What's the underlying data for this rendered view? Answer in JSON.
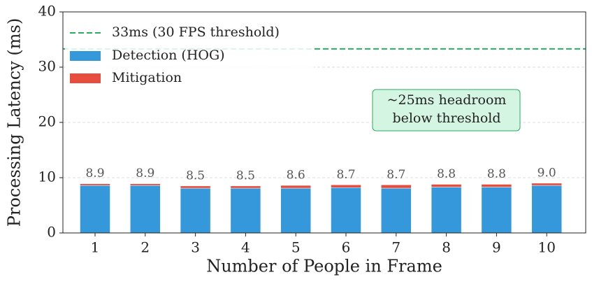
{
  "chart_data": {
    "type": "stacked_bar",
    "x_label": "Number of People in Frame",
    "y_label": "Processing Latency (ms)",
    "categories": [
      "1",
      "2",
      "3",
      "4",
      "5",
      "6",
      "7",
      "8",
      "9",
      "10"
    ],
    "series": [
      {
        "name": "Detection (HOG)",
        "color": "#3498db",
        "values": [
          8.6,
          8.6,
          8.1,
          8.1,
          8.1,
          8.2,
          8.1,
          8.3,
          8.3,
          8.6
        ]
      },
      {
        "name": "Mitigation",
        "color": "#e74c3c",
        "values": [
          0.3,
          0.3,
          0.4,
          0.4,
          0.5,
          0.5,
          0.6,
          0.5,
          0.5,
          0.4
        ]
      }
    ],
    "total_labels": [
      "8.9",
      "8.9",
      "8.5",
      "8.5",
      "8.6",
      "8.7",
      "8.7",
      "8.8",
      "8.8",
      "9.0"
    ],
    "threshold": {
      "value": 33.3,
      "label": "33ms (30 FPS threshold)",
      "color": "#27ae60"
    },
    "annotation": [
      "~25ms headroom",
      "below threshold"
    ],
    "ylim": [
      0,
      40
    ],
    "yticks": [
      0,
      10,
      20,
      30,
      40
    ],
    "grid": true,
    "legend": "upper left"
  }
}
